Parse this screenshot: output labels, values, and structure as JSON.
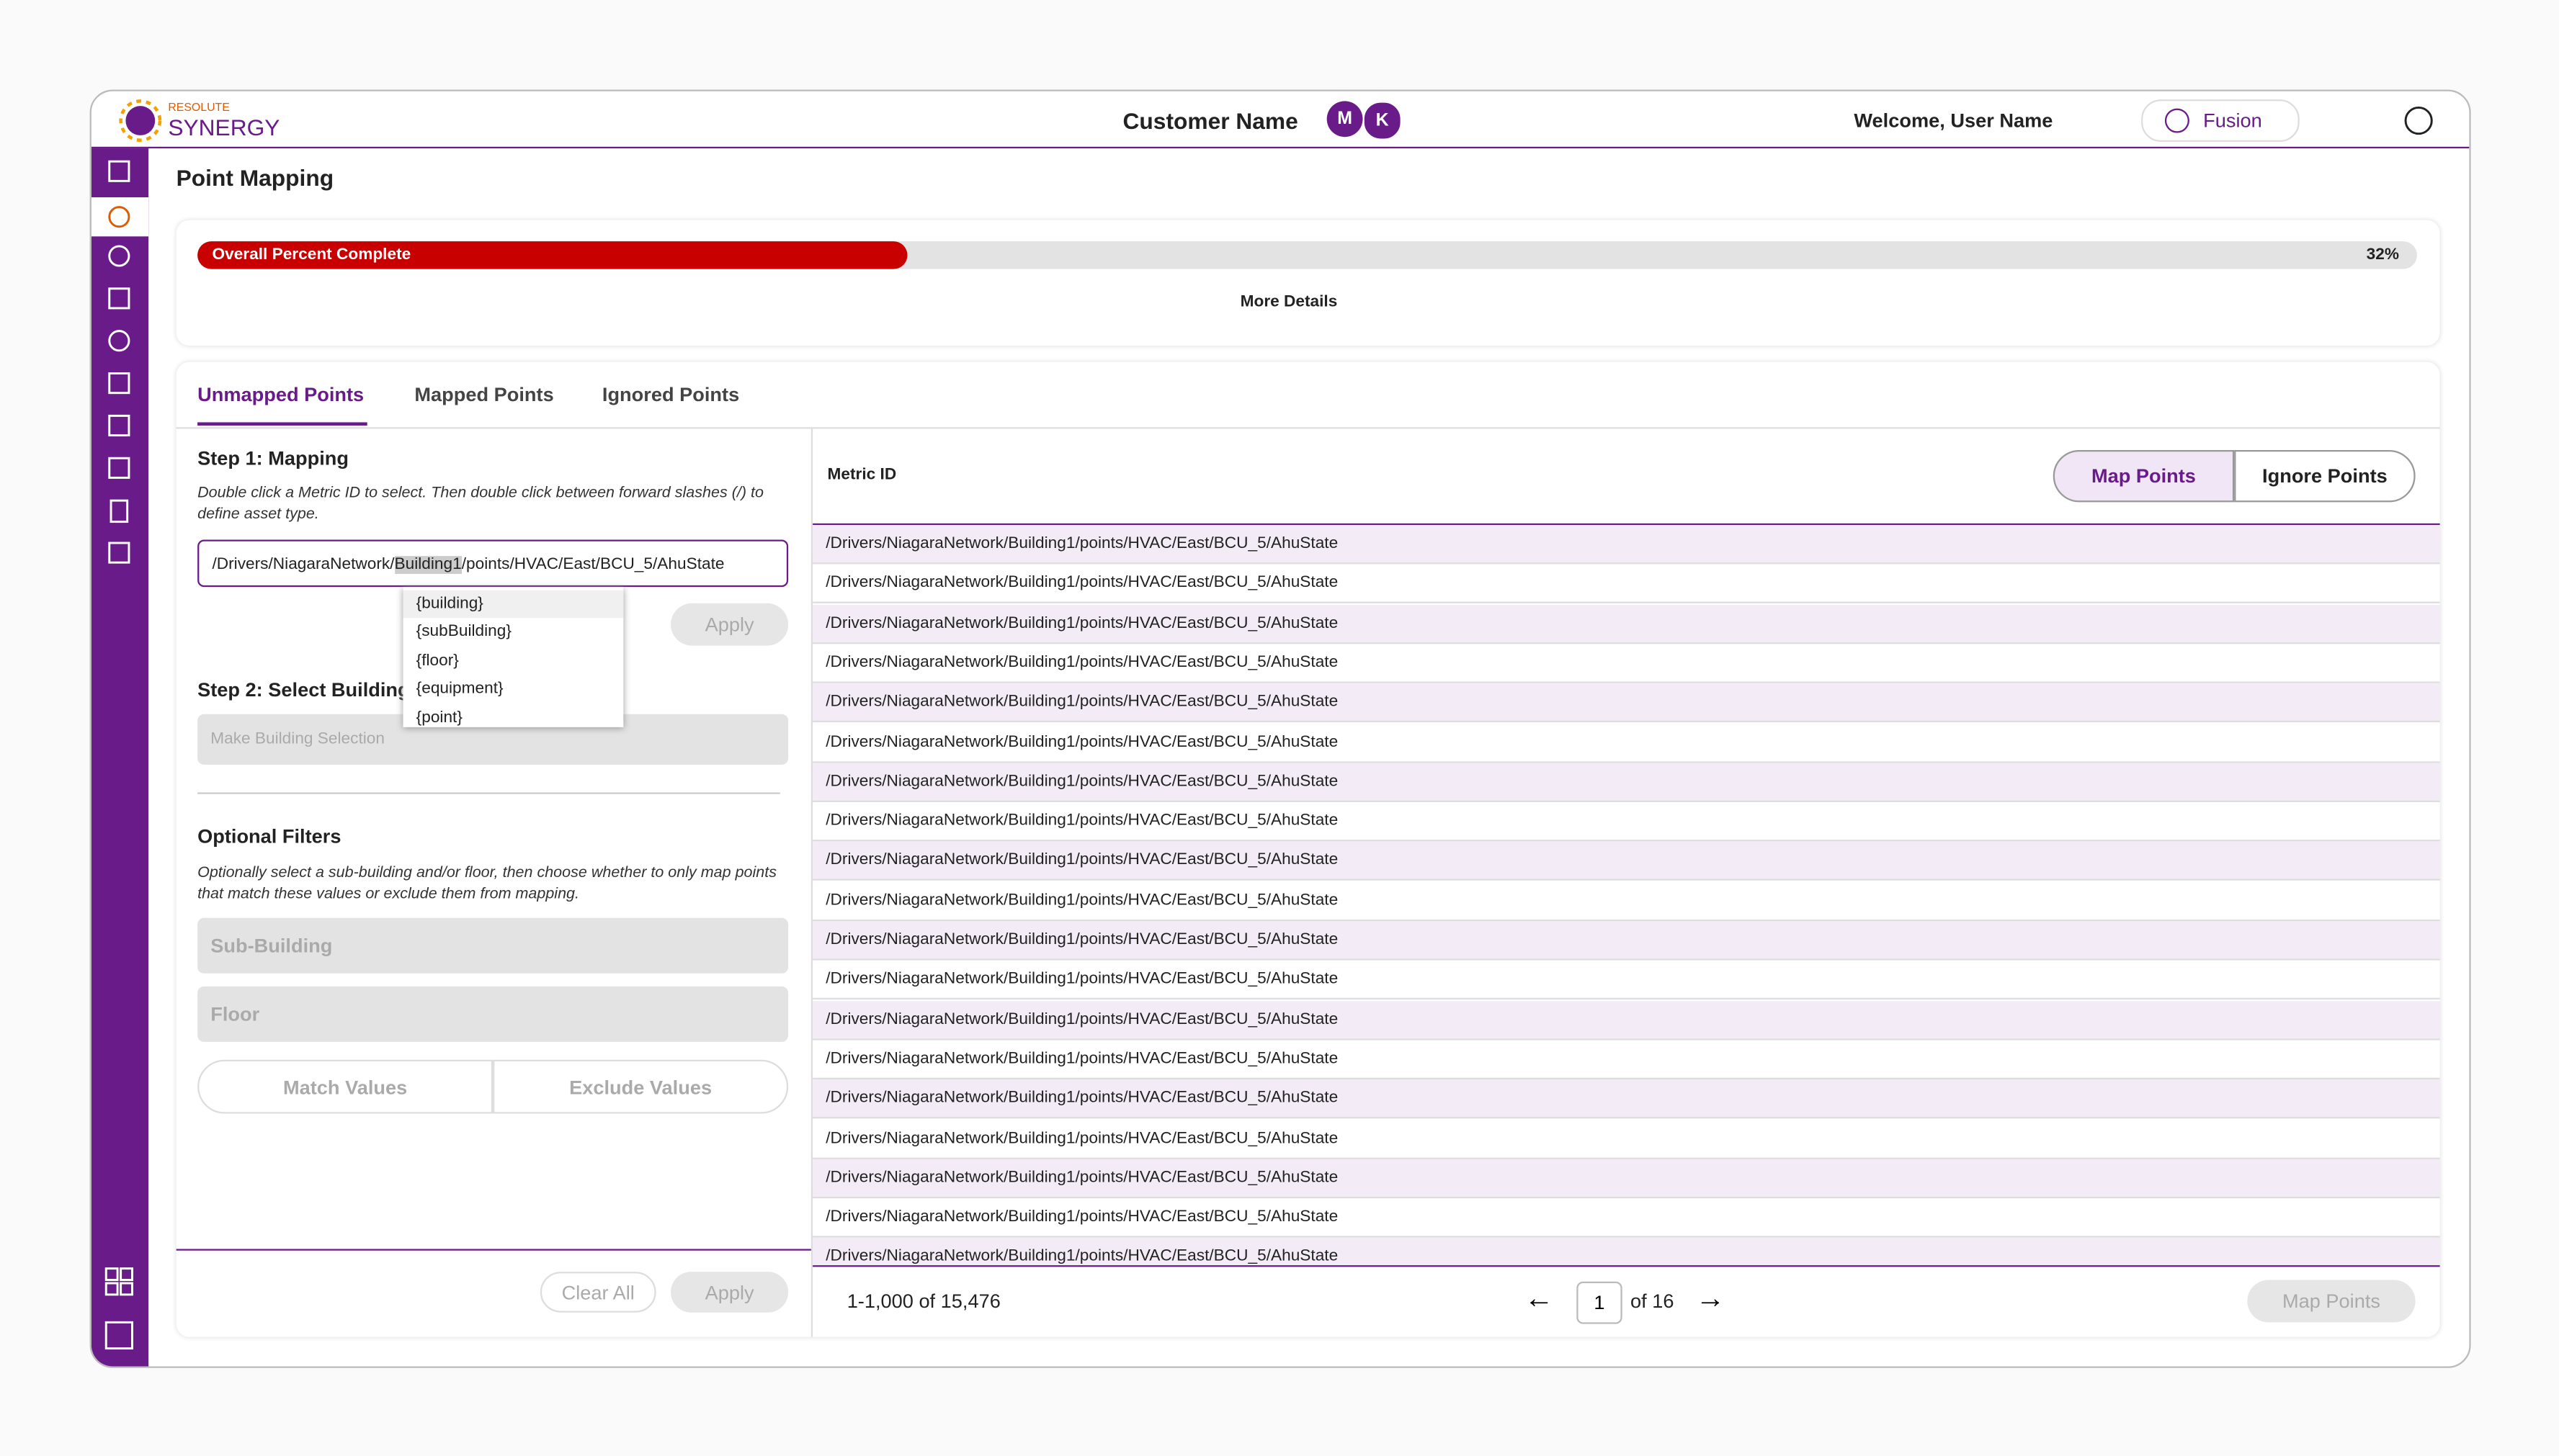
{
  "header": {
    "logo_top": "RESOLUTE",
    "logo": "SYNERGY",
    "customer": "Customer Name",
    "avatars": [
      "M",
      "K"
    ],
    "welcome": "Welcome, User Name",
    "fusion": "Fusion"
  },
  "page_title": "Point Mapping",
  "progress": {
    "label": "Overall Percent Complete",
    "value": 32,
    "value_label": "32%",
    "details": "More Details"
  },
  "tabs": [
    "Unmapped Points",
    "Mapped Points",
    "Ignored Points"
  ],
  "step1": {
    "title": "Step 1: Mapping",
    "help": "Double click a Metric ID to select. Then double click between forward slashes (/) to define asset type.",
    "input_before": "/Drivers/NiagaraNetwork/",
    "input_selected": "Building1",
    "input_after": "/points/HVAC/East/BCU_5/AhuState",
    "apply": "Apply",
    "options": [
      "{building}",
      "{subBuilding}",
      "{floor}",
      "{equipment}",
      "{point}"
    ]
  },
  "step2": {
    "title": "Step 2: Select Building",
    "placeholder": "Make Building Selection"
  },
  "filters": {
    "title": "Optional Filters",
    "help": "Optionally select a sub-building and/or floor, then choose whether to only map points that match these values or exclude them from mapping.",
    "sub_building": "Sub-Building",
    "floor": "Floor",
    "match": "Match Values",
    "exclude": "Exclude Values",
    "clear": "Clear All",
    "apply": "Apply"
  },
  "table": {
    "column": "Metric ID",
    "map_button": "Map Points",
    "ignore_button": "Ignore Points",
    "rows": [
      "/Drivers/NiagaraNetwork/Building1/points/HVAC/East/BCU_5/AhuState",
      "/Drivers/NiagaraNetwork/Building1/points/HVAC/East/BCU_5/AhuState",
      "/Drivers/NiagaraNetwork/Building1/points/HVAC/East/BCU_5/AhuState",
      "/Drivers/NiagaraNetwork/Building1/points/HVAC/East/BCU_5/AhuState",
      "/Drivers/NiagaraNetwork/Building1/points/HVAC/East/BCU_5/AhuState",
      "/Drivers/NiagaraNetwork/Building1/points/HVAC/East/BCU_5/AhuState",
      "/Drivers/NiagaraNetwork/Building1/points/HVAC/East/BCU_5/AhuState",
      "/Drivers/NiagaraNetwork/Building1/points/HVAC/East/BCU_5/AhuState",
      "/Drivers/NiagaraNetwork/Building1/points/HVAC/East/BCU_5/AhuState",
      "/Drivers/NiagaraNetwork/Building1/points/HVAC/East/BCU_5/AhuState",
      "/Drivers/NiagaraNetwork/Building1/points/HVAC/East/BCU_5/AhuState",
      "/Drivers/NiagaraNetwork/Building1/points/HVAC/East/BCU_5/AhuState",
      "/Drivers/NiagaraNetwork/Building1/points/HVAC/East/BCU_5/AhuState",
      "/Drivers/NiagaraNetwork/Building1/points/HVAC/East/BCU_5/AhuState",
      "/Drivers/NiagaraNetwork/Building1/points/HVAC/East/BCU_5/AhuState",
      "/Drivers/NiagaraNetwork/Building1/points/HVAC/East/BCU_5/AhuState",
      "/Drivers/NiagaraNetwork/Building1/points/HVAC/East/BCU_5/AhuState",
      "/Drivers/NiagaraNetwork/Building1/points/HVAC/East/BCU_5/AhuState",
      "/Drivers/NiagaraNetwork/Building1/points/HVAC/East/BCU_5/AhuState"
    ]
  },
  "pagination": {
    "range": "1-1,000 of 15,476",
    "page": "1",
    "of": "of 16",
    "map": "Map Points"
  }
}
